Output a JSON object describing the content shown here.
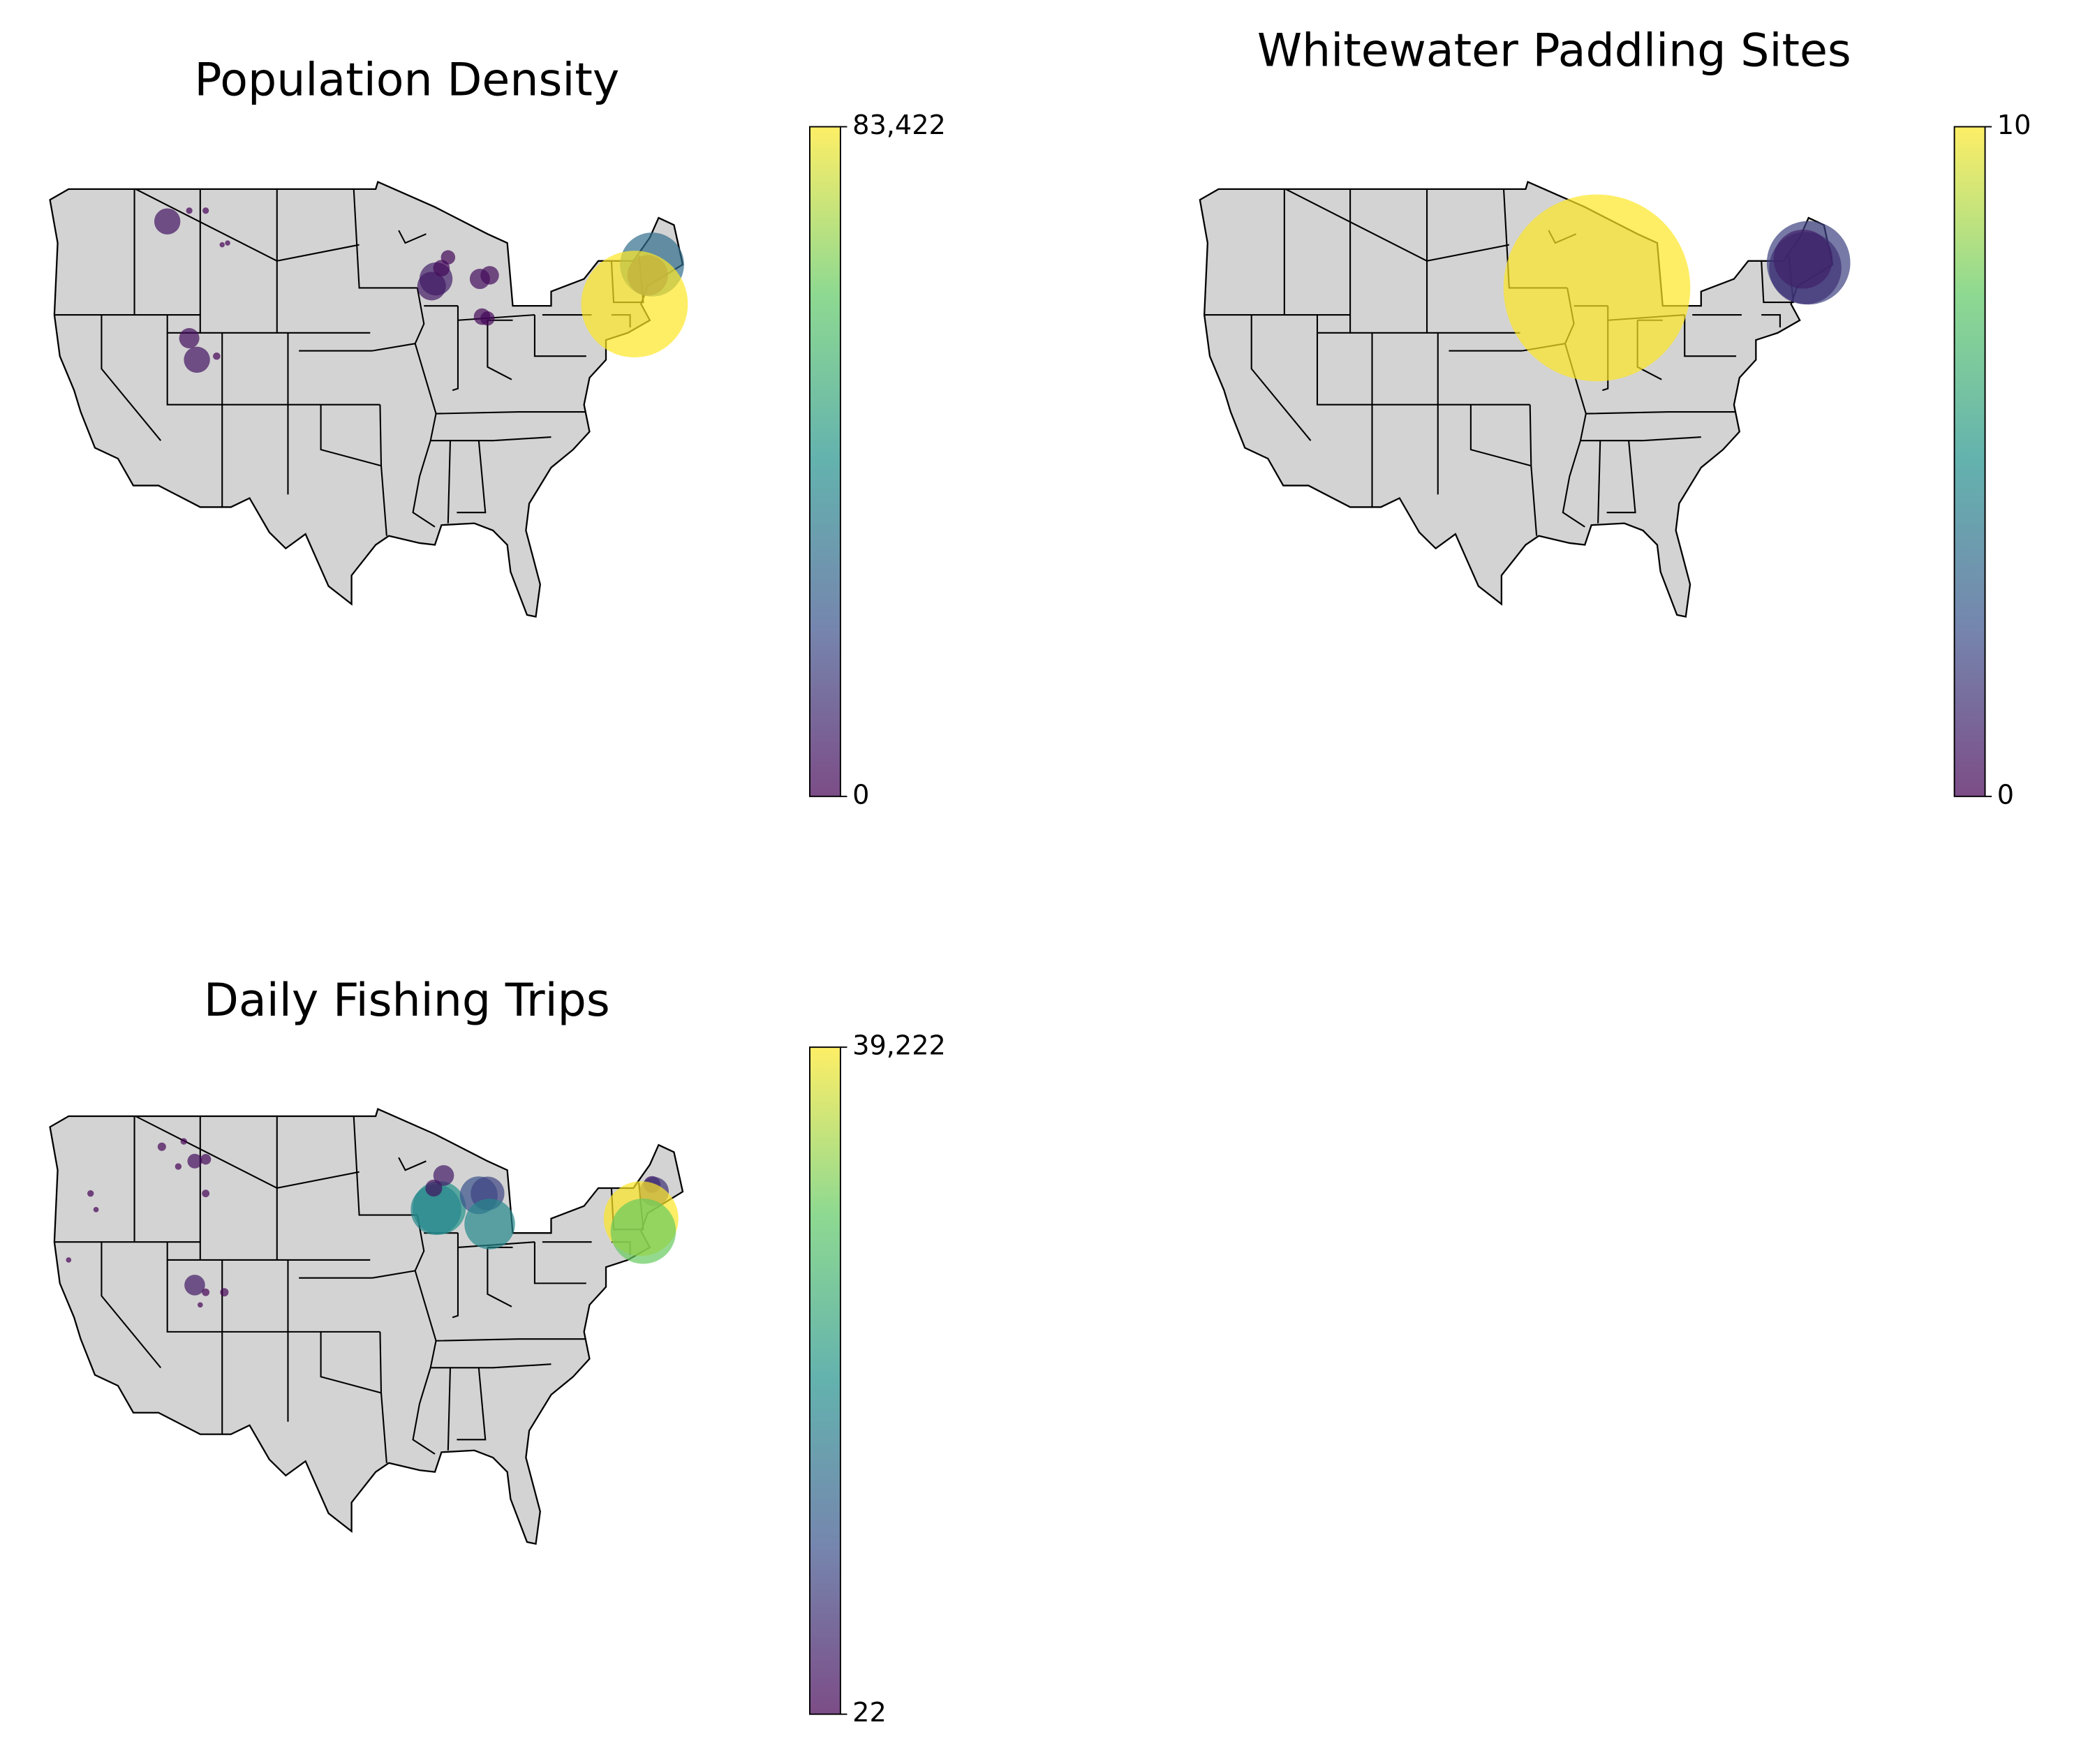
{
  "panels": [
    {
      "title": "Population Density",
      "colorbar": {
        "ticks": [
          0,
          {
            "value": 83422,
            "label": "83,422"
          }
        ]
      },
      "points": [
        {
          "lon": -114,
          "lat": 47.2,
          "value": 5000
        },
        {
          "lon": -112,
          "lat": 47.8,
          "value": 300
        },
        {
          "lon": -110.5,
          "lat": 47.8,
          "value": 300
        },
        {
          "lon": -108.5,
          "lat": 46,
          "value": 200
        },
        {
          "lon": -109,
          "lat": 45.9,
          "value": 200
        },
        {
          "lon": -112,
          "lat": 40.7,
          "value": 3000
        },
        {
          "lon": -111.3,
          "lat": 39.5,
          "value": 5000
        },
        {
          "lon": -109.5,
          "lat": 39.7,
          "value": 400
        },
        {
          "lon": -89.5,
          "lat": 44,
          "value": 8000
        },
        {
          "lon": -89.9,
          "lat": 43.6,
          "value": 6000
        },
        {
          "lon": -89,
          "lat": 44.6,
          "value": 2000
        },
        {
          "lon": -88.4,
          "lat": 45.2,
          "value": 1500
        },
        {
          "lon": -85.5,
          "lat": 44,
          "value": 3000
        },
        {
          "lon": -84.6,
          "lat": 44.2,
          "value": 2500
        },
        {
          "lon": -85.3,
          "lat": 41.9,
          "value": 2000
        },
        {
          "lon": -84.8,
          "lat": 41.8,
          "value": 1500
        },
        {
          "lon": -69.8,
          "lat": 44.8,
          "value": 30000
        },
        {
          "lon": -70.2,
          "lat": 44.2,
          "value": 12000
        },
        {
          "lon": -71.4,
          "lat": 42.6,
          "value": 83422
        }
      ]
    },
    {
      "title": "Whitewater Paddling Sites",
      "colorbar": {
        "ticks": [
          0,
          10
        ]
      },
      "points": [
        {
          "lon": -88.5,
          "lat": 43.5,
          "value": 10
        },
        {
          "lon": -69.2,
          "lat": 44.9,
          "value": 2
        },
        {
          "lon": -69.5,
          "lat": 44.6,
          "value": 1.5
        },
        {
          "lon": -69.7,
          "lat": 45.1,
          "value": 1
        }
      ]
    },
    {
      "title": "Daily Fishing Trips",
      "colorbar": {
        "ticks": [
          22,
          {
            "value": 39222,
            "label": "39,222"
          }
        ]
      },
      "points": [
        {
          "lon": -114.5,
          "lat": 47.3,
          "value": 500
        },
        {
          "lon": -112.5,
          "lat": 47.6,
          "value": 300
        },
        {
          "lon": -111.5,
          "lat": 46.5,
          "value": 1500
        },
        {
          "lon": -110.5,
          "lat": 46.6,
          "value": 800
        },
        {
          "lon": -113,
          "lat": 46.2,
          "value": 300
        },
        {
          "lon": -110.5,
          "lat": 44.7,
          "value": 400
        },
        {
          "lon": -121,
          "lat": 44.7,
          "value": 300
        },
        {
          "lon": -120.5,
          "lat": 43.8,
          "value": 200
        },
        {
          "lon": -123,
          "lat": 41,
          "value": 200
        },
        {
          "lon": -111.5,
          "lat": 39.6,
          "value": 3000
        },
        {
          "lon": -110.5,
          "lat": 39.2,
          "value": 400
        },
        {
          "lon": -108.8,
          "lat": 39.2,
          "value": 500
        },
        {
          "lon": -111,
          "lat": 38.5,
          "value": 200
        },
        {
          "lon": -89.2,
          "lat": 43.9,
          "value": 20000
        },
        {
          "lon": -89.5,
          "lat": 43.8,
          "value": 18000
        },
        {
          "lon": -89.7,
          "lat": 45,
          "value": 2000
        },
        {
          "lon": -88.8,
          "lat": 45.7,
          "value": 3000
        },
        {
          "lon": -85.6,
          "lat": 44.6,
          "value": 10000
        },
        {
          "lon": -84.8,
          "lat": 44.7,
          "value": 8000
        },
        {
          "lon": -84.6,
          "lat": 43,
          "value": 18000
        },
        {
          "lon": -69.8,
          "lat": 45.2,
          "value": 2000
        },
        {
          "lon": -69.6,
          "lat": 44.8,
          "value": 6000
        },
        {
          "lon": -70.8,
          "lat": 43.3,
          "value": 39222
        },
        {
          "lon": -70.6,
          "lat": 42.6,
          "value": 30000
        }
      ]
    }
  ]
}
